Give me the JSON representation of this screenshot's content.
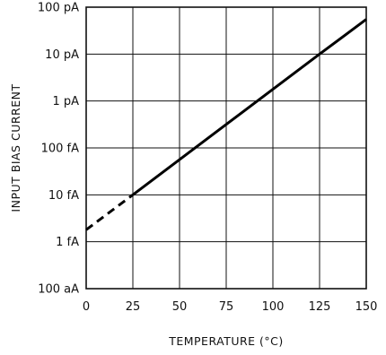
{
  "chart_data": {
    "type": "line",
    "title": "",
    "xlabel": "TEMPERATURE (°C)",
    "ylabel": "INPUT BIAS CURRENT",
    "x_ticks": [
      "0",
      "25",
      "50",
      "75",
      "100",
      "125",
      "150"
    ],
    "y_ticks": [
      "100 aA",
      "1 fA",
      "10 fA",
      "100 fA",
      "1 pA",
      "10 pA",
      "100 pA"
    ],
    "xlim": [
      0,
      150
    ],
    "ylim": [
      "100 aA",
      "100 pA"
    ],
    "y_scale": "log",
    "grid": true,
    "series": [
      {
        "style": "dashed",
        "points": [
          {
            "x": 0,
            "y": "1.8 fA"
          },
          {
            "x": 25,
            "y": "10 fA"
          }
        ]
      },
      {
        "style": "solid",
        "points": [
          {
            "x": 25,
            "y": "10 fA"
          },
          {
            "x": 125,
            "y": "10 pA"
          },
          {
            "x": 150,
            "y": "55 pA"
          }
        ]
      }
    ]
  },
  "colors": {
    "line": "#000000",
    "grid": "#111111",
    "background": "#ffffff"
  }
}
